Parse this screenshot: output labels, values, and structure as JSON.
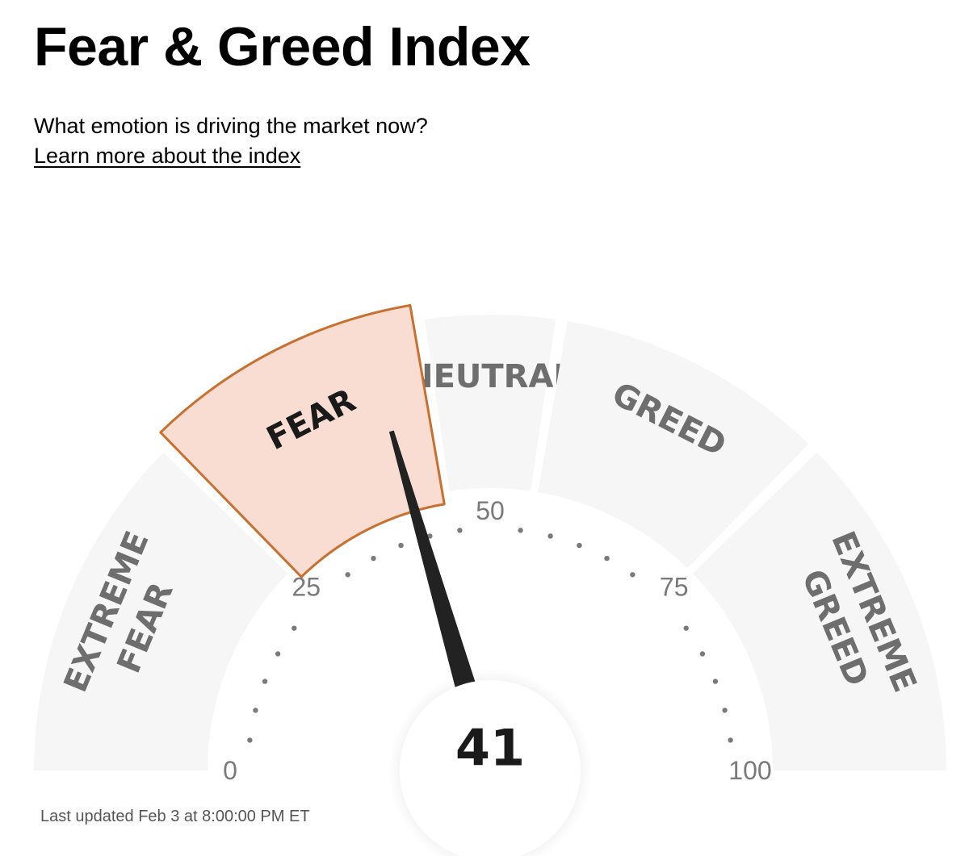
{
  "header": {
    "title": "Fear & Greed Index",
    "subtitle": "What emotion is driving the market now?",
    "learn_more": "Learn more about the index"
  },
  "footer": {
    "last_updated": "Last updated Feb 3 at 8:00:00 PM ET"
  },
  "colors": {
    "segment_fill": "#f6f6f6",
    "active_fill": "#f9ddd3",
    "active_stroke": "#c9702f",
    "needle": "#222222",
    "segment_label": "#6e6e6e",
    "active_label": "#1a1a1a",
    "tick_label": "#7a7a7a",
    "tick_dot": "#7a7a7a",
    "value_text": "#1a1a1a"
  },
  "chart_data": {
    "type": "gauge",
    "min": 0,
    "max": 100,
    "value": 41,
    "active_zone": "fear",
    "zones": [
      {
        "id": "extreme-fear",
        "from": 0,
        "to": 25,
        "label_lines": [
          "EXTREME",
          "FEAR"
        ]
      },
      {
        "id": "fear",
        "from": 25,
        "to": 45,
        "label_lines": [
          "FEAR"
        ]
      },
      {
        "id": "neutral",
        "from": 45,
        "to": 55,
        "label_lines": [
          "NEUTRAL"
        ]
      },
      {
        "id": "greed",
        "from": 55,
        "to": 75,
        "label_lines": [
          "GREED"
        ]
      },
      {
        "id": "extreme-greed",
        "from": 75,
        "to": 100,
        "label_lines": [
          "EXTREME",
          "GREED"
        ]
      }
    ],
    "tick_labels": [
      {
        "value": 0,
        "text": "0"
      },
      {
        "value": 25,
        "text": "25"
      },
      {
        "value": 50,
        "text": "50"
      },
      {
        "value": 75,
        "text": "75"
      },
      {
        "value": 100,
        "text": "100"
      }
    ],
    "dot_values": [
      4,
      8,
      12,
      16,
      20,
      30,
      34,
      38,
      42,
      46,
      54,
      58,
      62,
      66,
      70,
      80,
      84,
      88,
      92,
      96
    ]
  }
}
